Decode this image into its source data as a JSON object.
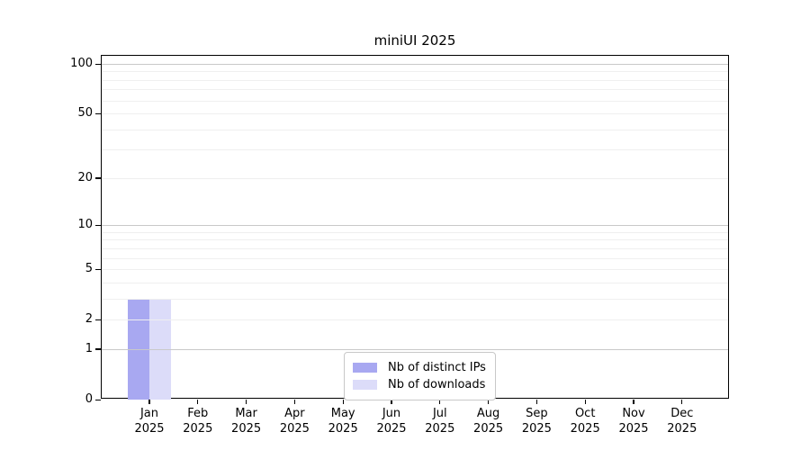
{
  "chart_data": {
    "type": "bar",
    "title": "miniUI 2025",
    "categories": [
      "Jan",
      "Feb",
      "Mar",
      "Apr",
      "May",
      "Jun",
      "Jul",
      "Aug",
      "Sep",
      "Oct",
      "Nov",
      "Dec"
    ],
    "category_year_label": "2025",
    "series": [
      {
        "name": "Nb of distinct IPs",
        "color": "#a8a8f1",
        "values": [
          3,
          0,
          0,
          0,
          0,
          0,
          0,
          0,
          0,
          0,
          0,
          0
        ]
      },
      {
        "name": "Nb of downloads",
        "color": "#dcdcf9",
        "values": [
          3,
          0,
          0,
          0,
          0,
          0,
          0,
          0,
          0,
          0,
          0,
          0
        ]
      }
    ],
    "y_scale": "log1p",
    "ylim": [
      0,
      100
    ],
    "y_ticks": [
      0,
      1,
      2,
      5,
      10,
      20,
      50,
      100
    ],
    "y_gridlines_major": [
      1,
      10,
      100
    ],
    "y_gridlines_minor": [
      2,
      3,
      4,
      5,
      6,
      7,
      8,
      9,
      20,
      30,
      40,
      50,
      60,
      70,
      80,
      90
    ],
    "grid": "horizontal, drawn over bars",
    "legend_position": "lower center"
  },
  "colors": {
    "background": "#ffffff",
    "axis": "#000000",
    "major_grid": "#c9c9c9",
    "minor_grid": "#efefef",
    "legend_border": "#c8c8c8"
  }
}
